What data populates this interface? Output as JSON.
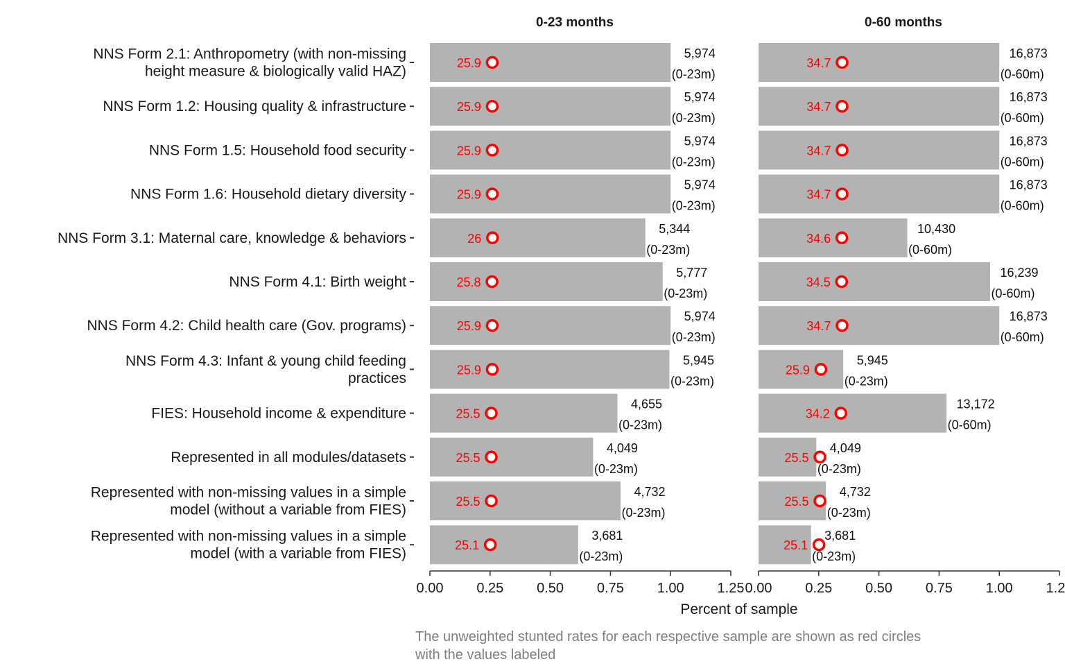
{
  "chart_data": {
    "type": "bar",
    "orientation": "horizontal",
    "title": "",
    "xlabel": "Percent of sample",
    "ylabel": "",
    "xlim": [
      0,
      1.25
    ],
    "xticks": [
      "0.00",
      "0.25",
      "0.50",
      "0.75",
      "1.00",
      "1.25"
    ],
    "grid": false,
    "colors": {
      "bar": "#b3b3b3",
      "rate": "#ff0000",
      "text": "#1a1a1a",
      "caption": "#7f7f7f"
    },
    "caption_lines": [
      "The unweighted stunted rates for each respective sample are shown as red circles",
      "with the values labeled"
    ],
    "categories": [
      [
        "NNS Form 2.1: Anthropometry (with non-missing",
        "height measure & biologically valid HAZ)"
      ],
      [
        "NNS Form 1.2: Housing quality & infrastructure"
      ],
      [
        "NNS Form 1.5: Household food security"
      ],
      [
        "NNS Form 1.6: Household dietary diversity"
      ],
      [
        "NNS Form 3.1: Maternal care, knowledge & behaviors"
      ],
      [
        "NNS Form 4.1: Birth weight"
      ],
      [
        "NNS Form 4.2: Child health care (Gov. programs)"
      ],
      [
        "NNS Form 4.3: Infant & young child feeding",
        "practices"
      ],
      [
        "FIES: Household income & expenditure"
      ],
      [
        "Represented in all modules/datasets"
      ],
      [
        "Represented with non-missing values in a simple",
        "model (without a variable from FIES)"
      ],
      [
        "Represented with non-missing values in a simple",
        "model (with a variable from FIES)"
      ]
    ],
    "facets": [
      {
        "title": "0-23 months",
        "values": [
          1.0,
          1.0,
          1.0,
          1.0,
          0.895,
          0.967,
          1.0,
          0.995,
          0.779,
          0.678,
          0.792,
          0.616
        ],
        "counts": [
          "5,974",
          "5,974",
          "5,974",
          "5,974",
          "5,344",
          "5,777",
          "5,974",
          "5,945",
          "4,655",
          "4,049",
          "4,732",
          "3,681"
        ],
        "count_sublabels": [
          "(0-23m)",
          "(0-23m)",
          "(0-23m)",
          "(0-23m)",
          "(0-23m)",
          "(0-23m)",
          "(0-23m)",
          "(0-23m)",
          "(0-23m)",
          "(0-23m)",
          "(0-23m)",
          "(0-23m)"
        ],
        "stunted_rates": [
          25.9,
          25.9,
          25.9,
          25.9,
          26,
          25.8,
          25.9,
          25.9,
          25.5,
          25.5,
          25.5,
          25.1
        ],
        "stunted_rate_labels": [
          "25.9",
          "25.9",
          "25.9",
          "25.9",
          "26",
          "25.8",
          "25.9",
          "25.9",
          "25.5",
          "25.5",
          "25.5",
          "25.1"
        ]
      },
      {
        "title": "0-60 months",
        "values": [
          1.0,
          1.0,
          1.0,
          1.0,
          0.618,
          0.962,
          1.0,
          0.352,
          0.781,
          0.24,
          0.28,
          0.218
        ],
        "counts": [
          "16,873",
          "16,873",
          "16,873",
          "16,873",
          "10,430",
          "16,239",
          "16,873",
          "5,945",
          "13,172",
          "4,049",
          "4,732",
          "3,681"
        ],
        "count_sublabels": [
          "(0-60m)",
          "(0-60m)",
          "(0-60m)",
          "(0-60m)",
          "(0-60m)",
          "(0-60m)",
          "(0-60m)",
          "(0-23m)",
          "(0-60m)",
          "(0-23m)",
          "(0-23m)",
          "(0-23m)"
        ],
        "stunted_rates": [
          34.7,
          34.7,
          34.7,
          34.7,
          34.6,
          34.5,
          34.7,
          25.9,
          34.2,
          25.5,
          25.5,
          25.1
        ],
        "stunted_rate_labels": [
          "34.7",
          "34.7",
          "34.7",
          "34.7",
          "34.6",
          "34.5",
          "34.7",
          "25.9",
          "34.2",
          "25.5",
          "25.5",
          "25.1"
        ]
      }
    ]
  }
}
